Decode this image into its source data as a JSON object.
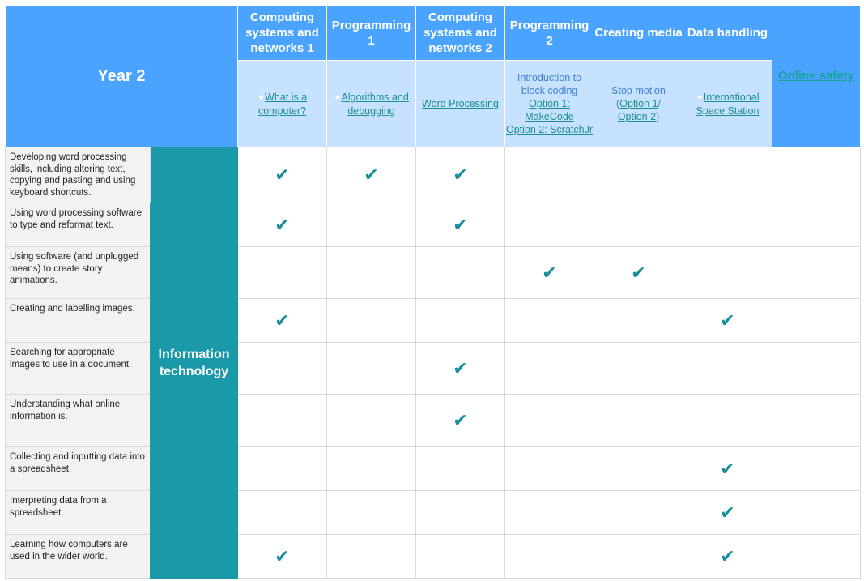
{
  "header": {
    "year": "Year 2",
    "units": [
      {
        "title": "Computing systems and networks 1"
      },
      {
        "title": "Programming 1"
      },
      {
        "title": "Computing systems and networks 2"
      },
      {
        "title": "Programming 2"
      },
      {
        "title": "Creating media"
      },
      {
        "title": "Data handling"
      }
    ],
    "online_safety": "Online safety"
  },
  "lessons": {
    "csn1": {
      "spark": "✦",
      "link": "What is a computer?"
    },
    "prog1": {
      "spark": "✦",
      "link": "Algorithms and debugging"
    },
    "csn2": {
      "link": "Word Processing"
    },
    "prog2": {
      "intro": "Introduction to block coding",
      "opt1": "Option 1: MakeCode",
      "opt2": "Option 2: ScratchJr"
    },
    "media": {
      "intro": "Stop motion",
      "open_paren": "(",
      "opt1": "Option 1",
      "slash": "/",
      "opt2": "Option 2",
      "close_paren": ")"
    },
    "data": {
      "spark": "✦",
      "link": "International Space Station"
    }
  },
  "strand": "Information technology",
  "tick_glyph": "✔",
  "colors": {
    "header_blue": "#4aa3ff",
    "subheader_blue": "#c7e2ff",
    "strand_teal": "#1a9aa8",
    "tick": "#1a8f9c",
    "link": "#1a8f8c"
  },
  "rows": [
    {
      "text": "Developing word processing skills, including altering text, copying and pasting and using keyboard shortcuts.",
      "ticks": [
        true,
        true,
        true,
        false,
        false,
        false,
        false
      ]
    },
    {
      "text": "Using word processing software to type and reformat text.",
      "ticks": [
        true,
        false,
        true,
        false,
        false,
        false,
        false
      ]
    },
    {
      "text": "Using software (and unplugged means) to create story animations.",
      "ticks": [
        false,
        false,
        false,
        true,
        true,
        false,
        false
      ]
    },
    {
      "text": "Creating and labelling images.",
      "ticks": [
        true,
        false,
        false,
        false,
        false,
        true,
        false
      ]
    },
    {
      "text": "Searching for appropriate images to use in a document.",
      "ticks": [
        false,
        false,
        true,
        false,
        false,
        false,
        false
      ]
    },
    {
      "text": "Understanding what online information is.",
      "ticks": [
        false,
        false,
        true,
        false,
        false,
        false,
        false
      ]
    },
    {
      "text": "Collecting and inputting data into a spreadsheet.",
      "ticks": [
        false,
        false,
        false,
        false,
        false,
        true,
        false
      ]
    },
    {
      "text": "Interpreting data from a spreadsheet.",
      "ticks": [
        false,
        false,
        false,
        false,
        false,
        true,
        false
      ]
    },
    {
      "text": "Learning how computers are used in the wider world.",
      "ticks": [
        true,
        false,
        false,
        false,
        false,
        true,
        false
      ]
    }
  ]
}
